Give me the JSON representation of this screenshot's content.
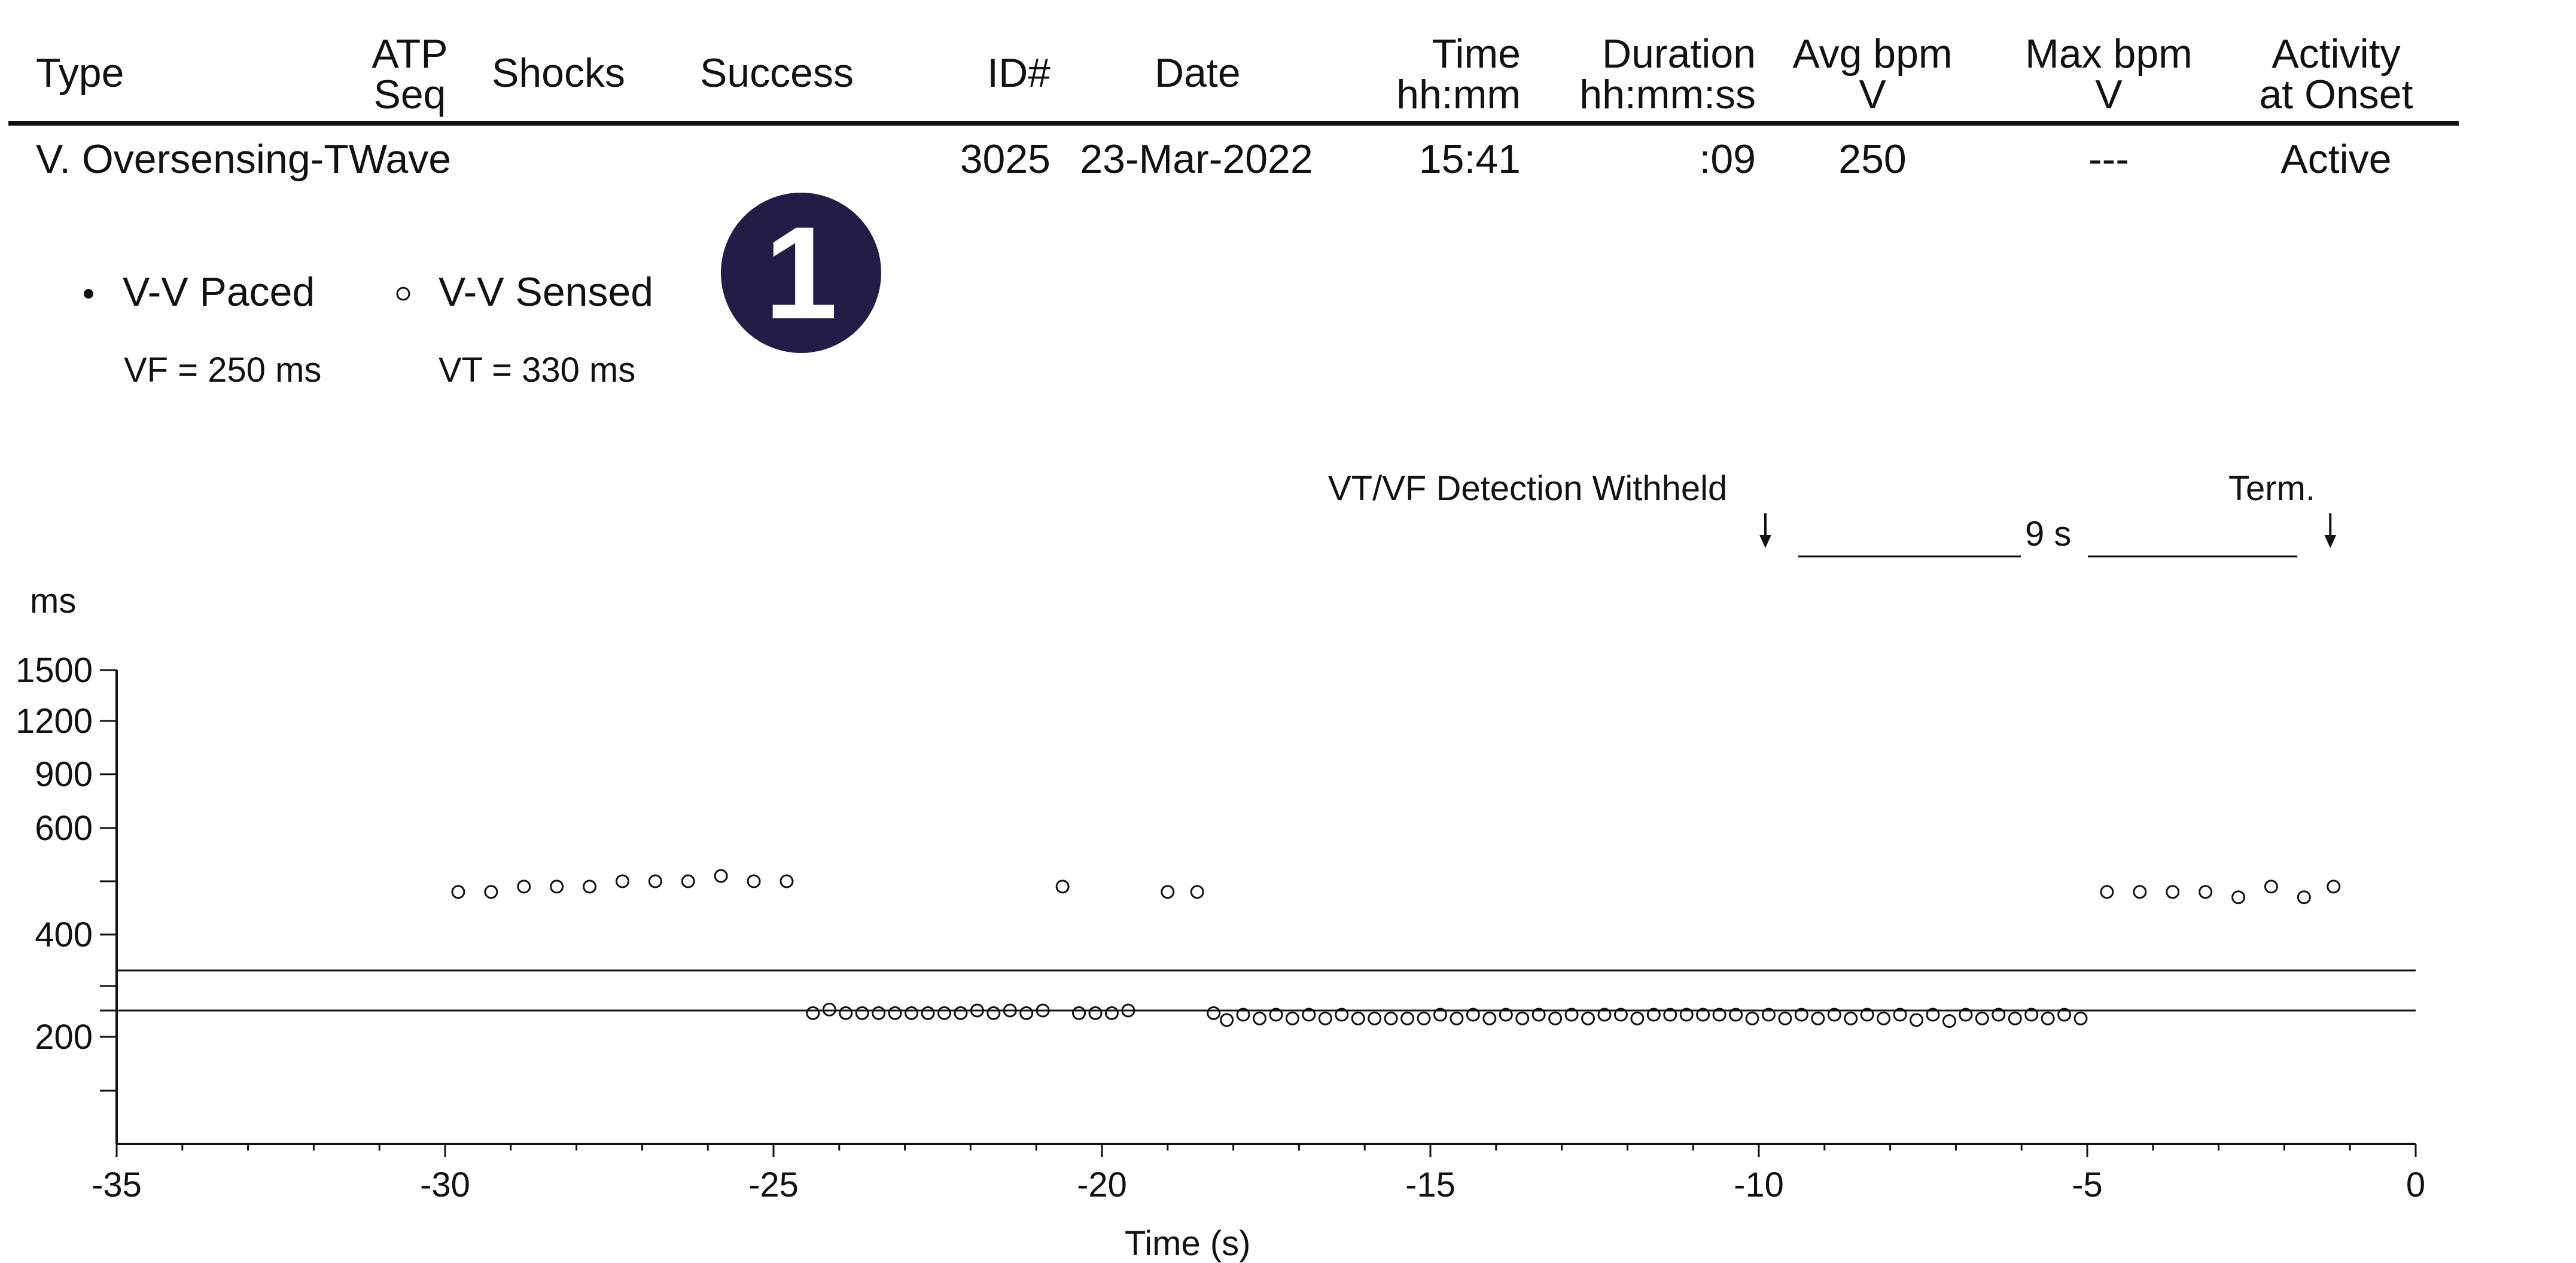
{
  "table": {
    "headers": [
      {
        "lines": [
          "Type"
        ]
      },
      {
        "lines": [
          "ATP",
          "Seq"
        ]
      },
      {
        "lines": [
          "Shocks"
        ]
      },
      {
        "lines": [
          "Success"
        ]
      },
      {
        "lines": [
          "ID#"
        ]
      },
      {
        "lines": [
          "Date"
        ]
      },
      {
        "lines": [
          "Time",
          "hh:mm"
        ]
      },
      {
        "lines": [
          "Duration",
          "hh:mm:ss"
        ]
      },
      {
        "lines": [
          "Avg bpm",
          "V"
        ]
      },
      {
        "lines": [
          "Max bpm",
          "V"
        ]
      },
      {
        "lines": [
          "Activity",
          "at Onset"
        ]
      }
    ],
    "row": {
      "type": "V. Oversensing-TWave",
      "atp_seq": "",
      "shocks": "",
      "success": "",
      "id": "3025",
      "date": "23-Mar-2022",
      "time": "15:41",
      "duration": ":09",
      "avg_bpm": "250",
      "max_bpm": "---",
      "activity": "Active"
    }
  },
  "badge": {
    "number": "1",
    "color": "#231c47"
  },
  "legend": {
    "paced_label": "V-V Paced",
    "sensed_label": "V-V Sensed",
    "vf_label": "VF = 250 ms",
    "vt_label": "VT = 330 ms"
  },
  "chart_data": {
    "type": "scatter",
    "xlabel": "Time (s)",
    "ylabel": "ms",
    "xlim": [
      -35,
      0
    ],
    "x_ticks": [
      -35,
      -30,
      -25,
      -20,
      -15,
      -10,
      -5,
      0
    ],
    "y_tick_labels": [
      200,
      400,
      600,
      900,
      1200,
      1500
    ],
    "y_minor_ticks": [
      150,
      250,
      300,
      500
    ],
    "ylim_visible": [
      100,
      1500
    ],
    "grid": false,
    "thresholds": [
      {
        "name": "VT",
        "value": 330
      },
      {
        "name": "VF",
        "value": 250
      }
    ],
    "annotations": {
      "detection_text": "VT/VF Detection Withheld",
      "detection_time": -9.9,
      "term_text": "Term.",
      "term_time": -1.3,
      "duration_text": "9 s"
    },
    "series": [
      {
        "name": "V-V Sensed",
        "marker": "open-circle",
        "points": [
          [
            -29.8,
            480
          ],
          [
            -29.3,
            480
          ],
          [
            -28.8,
            490
          ],
          [
            -28.3,
            490
          ],
          [
            -27.8,
            490
          ],
          [
            -27.3,
            500
          ],
          [
            -26.8,
            500
          ],
          [
            -26.3,
            500
          ],
          [
            -25.8,
            510
          ],
          [
            -25.3,
            500
          ],
          [
            -24.8,
            500
          ],
          [
            -24.4,
            245
          ],
          [
            -24.15,
            252
          ],
          [
            -23.9,
            245
          ],
          [
            -23.65,
            245
          ],
          [
            -23.4,
            245
          ],
          [
            -23.15,
            245
          ],
          [
            -22.9,
            245
          ],
          [
            -22.65,
            245
          ],
          [
            -22.4,
            245
          ],
          [
            -22.15,
            245
          ],
          [
            -21.9,
            250
          ],
          [
            -21.65,
            245
          ],
          [
            -21.4,
            250
          ],
          [
            -21.15,
            245
          ],
          [
            -20.9,
            250
          ],
          [
            -20.6,
            490
          ],
          [
            -20.35,
            245
          ],
          [
            -20.1,
            245
          ],
          [
            -19.85,
            245
          ],
          [
            -19.6,
            250
          ],
          [
            -19.0,
            480
          ],
          [
            -18.55,
            480
          ],
          [
            -18.3,
            245
          ],
          [
            -18.1,
            232
          ],
          [
            -17.85,
            242
          ],
          [
            -17.6,
            235
          ],
          [
            -17.35,
            242
          ],
          [
            -17.1,
            235
          ],
          [
            -16.85,
            242
          ],
          [
            -16.6,
            235
          ],
          [
            -16.35,
            242
          ],
          [
            -16.1,
            235
          ],
          [
            -15.85,
            235
          ],
          [
            -15.6,
            235
          ],
          [
            -15.35,
            235
          ],
          [
            -15.1,
            235
          ],
          [
            -14.85,
            242
          ],
          [
            -14.6,
            235
          ],
          [
            -14.35,
            242
          ],
          [
            -14.1,
            235
          ],
          [
            -13.85,
            242
          ],
          [
            -13.6,
            235
          ],
          [
            -13.35,
            242
          ],
          [
            -13.1,
            235
          ],
          [
            -12.85,
            242
          ],
          [
            -12.6,
            235
          ],
          [
            -12.35,
            242
          ],
          [
            -12.1,
            242
          ],
          [
            -11.85,
            235
          ],
          [
            -11.6,
            242
          ],
          [
            -11.35,
            242
          ],
          [
            -11.1,
            242
          ],
          [
            -10.85,
            242
          ],
          [
            -10.6,
            242
          ],
          [
            -10.35,
            242
          ],
          [
            -10.1,
            235
          ],
          [
            -9.85,
            242
          ],
          [
            -9.6,
            235
          ],
          [
            -9.35,
            242
          ],
          [
            -9.1,
            235
          ],
          [
            -8.85,
            242
          ],
          [
            -8.6,
            235
          ],
          [
            -8.35,
            242
          ],
          [
            -8.1,
            235
          ],
          [
            -7.85,
            242
          ],
          [
            -7.6,
            232
          ],
          [
            -7.35,
            242
          ],
          [
            -7.1,
            230
          ],
          [
            -6.85,
            242
          ],
          [
            -6.6,
            235
          ],
          [
            -6.35,
            242
          ],
          [
            -6.1,
            235
          ],
          [
            -5.85,
            242
          ],
          [
            -5.6,
            235
          ],
          [
            -5.35,
            242
          ],
          [
            -5.1,
            235
          ],
          [
            -4.7,
            480
          ],
          [
            -4.2,
            480
          ],
          [
            -3.7,
            480
          ],
          [
            -3.2,
            480
          ],
          [
            -2.7,
            470
          ],
          [
            -2.2,
            490
          ],
          [
            -1.7,
            470
          ],
          [
            -1.25,
            490
          ]
        ]
      }
    ]
  }
}
